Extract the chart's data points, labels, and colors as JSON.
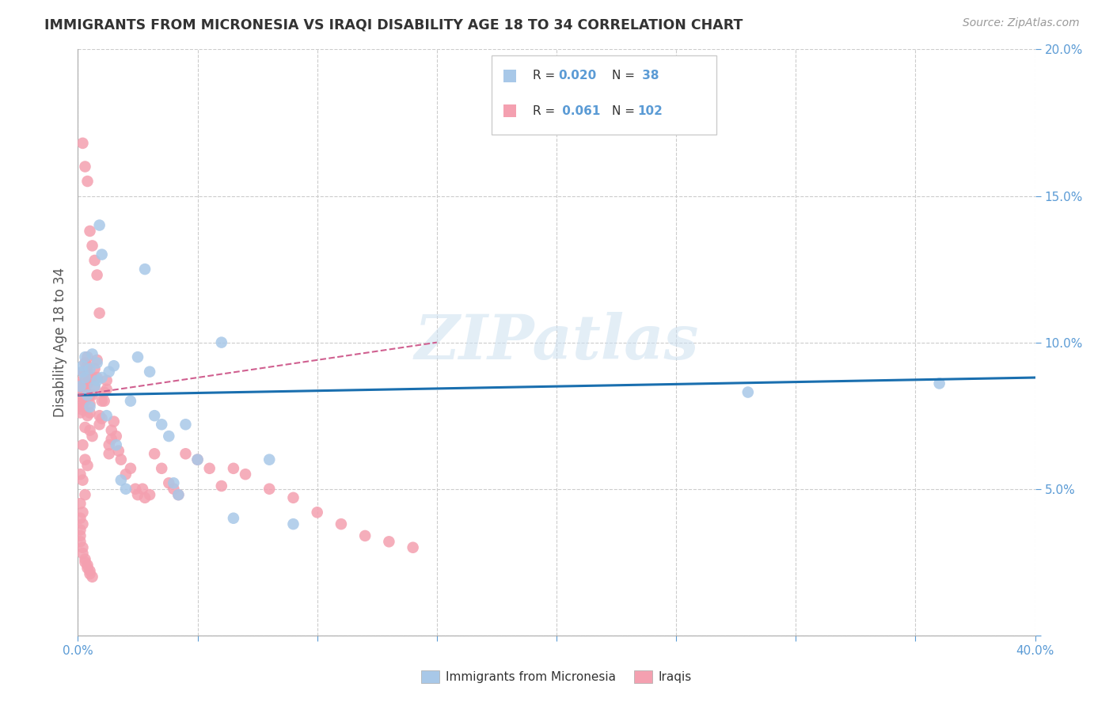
{
  "title": "IMMIGRANTS FROM MICRONESIA VS IRAQI DISABILITY AGE 18 TO 34 CORRELATION CHART",
  "source": "Source: ZipAtlas.com",
  "ylabel": "Disability Age 18 to 34",
  "xlim": [
    0,
    0.4
  ],
  "ylim": [
    0,
    0.2
  ],
  "xticks": [
    0.0,
    0.05,
    0.1,
    0.15,
    0.2,
    0.25,
    0.3,
    0.35,
    0.4
  ],
  "yticks": [
    0.0,
    0.05,
    0.1,
    0.15,
    0.2
  ],
  "blue_color": "#a8c8e8",
  "pink_color": "#f4a0b0",
  "blue_line_color": "#1a6faf",
  "pink_line_color": "#d06090",
  "watermark": "ZIPatlas",
  "blue_trend_x": [
    0.0,
    0.4
  ],
  "blue_trend_y": [
    0.082,
    0.088
  ],
  "pink_trend_x": [
    0.0,
    0.15
  ],
  "pink_trend_y": [
    0.082,
    0.1
  ],
  "blue_scatter_x": [
    0.001,
    0.002,
    0.002,
    0.003,
    0.003,
    0.004,
    0.005,
    0.006,
    0.007,
    0.008,
    0.009,
    0.01,
    0.012,
    0.013,
    0.015,
    0.016,
    0.018,
    0.02,
    0.022,
    0.025,
    0.028,
    0.03,
    0.032,
    0.035,
    0.038,
    0.042,
    0.05,
    0.06,
    0.065,
    0.09,
    0.28,
    0.36,
    0.005,
    0.008,
    0.01,
    0.04,
    0.08,
    0.045
  ],
  "blue_scatter_y": [
    0.085,
    0.09,
    0.092,
    0.095,
    0.088,
    0.082,
    0.091,
    0.096,
    0.085,
    0.093,
    0.14,
    0.13,
    0.075,
    0.09,
    0.092,
    0.065,
    0.053,
    0.05,
    0.08,
    0.095,
    0.125,
    0.09,
    0.075,
    0.072,
    0.068,
    0.048,
    0.06,
    0.1,
    0.04,
    0.038,
    0.083,
    0.086,
    0.078,
    0.087,
    0.088,
    0.052,
    0.06,
    0.072
  ],
  "pink_scatter_x": [
    0.001,
    0.001,
    0.001,
    0.002,
    0.002,
    0.002,
    0.002,
    0.003,
    0.003,
    0.003,
    0.004,
    0.004,
    0.004,
    0.005,
    0.005,
    0.005,
    0.006,
    0.006,
    0.007,
    0.007,
    0.008,
    0.008,
    0.009,
    0.009,
    0.01,
    0.01,
    0.011,
    0.011,
    0.012,
    0.012,
    0.013,
    0.013,
    0.014,
    0.014,
    0.015,
    0.016,
    0.017,
    0.018,
    0.02,
    0.022,
    0.024,
    0.025,
    0.027,
    0.028,
    0.03,
    0.032,
    0.035,
    0.038,
    0.04,
    0.042,
    0.045,
    0.05,
    0.055,
    0.06,
    0.065,
    0.07,
    0.08,
    0.09,
    0.1,
    0.11,
    0.12,
    0.13,
    0.14,
    0.002,
    0.003,
    0.004,
    0.005,
    0.006,
    0.007,
    0.008,
    0.009,
    0.001,
    0.002,
    0.003,
    0.004,
    0.005,
    0.006,
    0.001,
    0.002,
    0.003,
    0.003,
    0.004,
    0.002,
    0.003,
    0.004,
    0.001,
    0.002,
    0.003,
    0.001,
    0.002,
    0.001,
    0.002,
    0.001,
    0.001,
    0.001,
    0.002,
    0.002,
    0.003,
    0.003,
    0.004,
    0.004,
    0.005,
    0.005,
    0.006
  ],
  "pink_scatter_y": [
    0.082,
    0.079,
    0.076,
    0.09,
    0.087,
    0.084,
    0.081,
    0.093,
    0.09,
    0.084,
    0.095,
    0.092,
    0.086,
    0.082,
    0.079,
    0.076,
    0.088,
    0.082,
    0.091,
    0.085,
    0.094,
    0.088,
    0.075,
    0.072,
    0.08,
    0.074,
    0.083,
    0.08,
    0.087,
    0.084,
    0.065,
    0.062,
    0.07,
    0.067,
    0.073,
    0.068,
    0.063,
    0.06,
    0.055,
    0.057,
    0.05,
    0.048,
    0.05,
    0.047,
    0.048,
    0.062,
    0.057,
    0.052,
    0.05,
    0.048,
    0.062,
    0.06,
    0.057,
    0.051,
    0.057,
    0.055,
    0.05,
    0.047,
    0.042,
    0.038,
    0.034,
    0.032,
    0.03,
    0.168,
    0.16,
    0.155,
    0.138,
    0.133,
    0.128,
    0.123,
    0.11,
    0.085,
    0.078,
    0.087,
    0.089,
    0.07,
    0.068,
    0.083,
    0.077,
    0.071,
    0.08,
    0.075,
    0.065,
    0.06,
    0.058,
    0.055,
    0.053,
    0.048,
    0.045,
    0.042,
    0.04,
    0.038,
    0.036,
    0.034,
    0.032,
    0.03,
    0.028,
    0.026,
    0.025,
    0.024,
    0.023,
    0.022,
    0.021,
    0.02
  ]
}
